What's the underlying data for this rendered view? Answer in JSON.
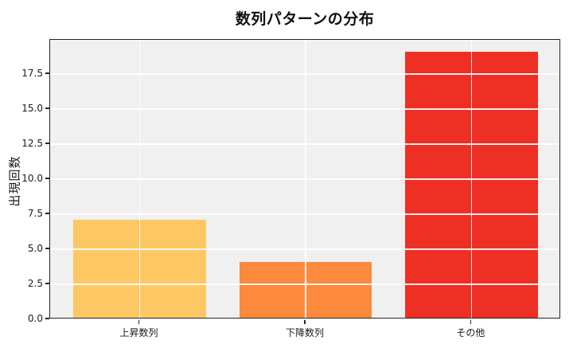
{
  "chart_data": {
    "type": "bar",
    "title": "数列パターンの分布",
    "xlabel": "",
    "ylabel": "出現回数",
    "categories": [
      "上昇数列",
      "下降数列",
      "その他"
    ],
    "values": [
      7,
      4,
      19
    ],
    "yticks": [
      0.0,
      2.5,
      5.0,
      7.5,
      10.0,
      12.5,
      15.0,
      17.5
    ],
    "ylim": [
      0,
      19.95
    ],
    "bar_width_fraction": 0.8,
    "legend": false,
    "grid": true,
    "grid_on_top": true,
    "colors": {
      "bars": [
        "#fdc863",
        "#fb8a3c",
        "#ee2f24"
      ],
      "plot_background": "#f0f0f0",
      "figure_background": "#ffffff",
      "gridline": "rgba(255,255,255,0.9)",
      "spine": "#262626",
      "text": "#1a1a1a"
    }
  }
}
